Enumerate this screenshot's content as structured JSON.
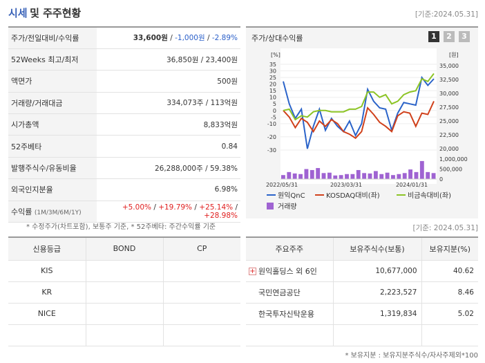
{
  "header": {
    "title_blue": "시세",
    "title_rest": "및 주주현황",
    "date": "[기준:2024.05.31]"
  },
  "price_rows": {
    "r1": {
      "label": "주가/전일대비/수익률",
      "price": "33,600원",
      "sep1": " / ",
      "change": "-1,000원",
      "sep2": " / ",
      "rate": "-2.89%"
    },
    "r2": {
      "label": "52Weeks 최고/최저",
      "value": "36,850원 / 23,400원"
    },
    "r3": {
      "label": "액면가",
      "value": "500원"
    },
    "r4": {
      "label": "거래량/거래대금",
      "value": "334,073주 / 113억원"
    },
    "r5": {
      "label": "시가총액",
      "value": "8,833억원"
    },
    "r6": {
      "label": "52주베타",
      "value": "0.84"
    },
    "r7": {
      "label": "발행주식수/유동비율",
      "value": "26,288,000주 / 59.38%"
    },
    "r8": {
      "label": "외국인지분율",
      "value": "6.98%"
    },
    "r9": {
      "label": "수익률",
      "label_small": "(1M/3M/6M/1Y)",
      "v1": "+5.00%",
      "v2": "+19.79%",
      "v3": "+25.14%",
      "v4": "+28.98%",
      "sep": " / "
    }
  },
  "footnote1": "* 수정주가(차트포함), 보통주 기준, * 52주베타: 주간수익률 기준",
  "chart_panel": {
    "title": "주가/상대수익률",
    "btn1": "1",
    "btn2": "2",
    "btn3": "3"
  },
  "chart_data": {
    "type": "line",
    "left_unit": "[%]",
    "right_unit": "[원]",
    "y_left_ticks": [
      35,
      30,
      25,
      20,
      15,
      10,
      5,
      0,
      -5,
      -10,
      -20,
      -30
    ],
    "y_right_ticks": [
      "35,000",
      "32,500",
      "30,000",
      "27,500",
      "25,000",
      "22,500",
      "20,000"
    ],
    "volume_ticks": [
      "1,000,000",
      "500,000",
      "0"
    ],
    "x_ticks": [
      "2022/05/31",
      "2023/03/31",
      "2024/01/31"
    ],
    "series": [
      {
        "name": "원익QnC",
        "color": "#2a63c9",
        "values": [
          22,
          5,
          -6,
          1,
          -29,
          -12,
          1,
          -15,
          -6,
          -12,
          -16,
          -8,
          -19,
          -10,
          16,
          7,
          2,
          1,
          -15,
          -2,
          6,
          5,
          4,
          25,
          19,
          24
        ]
      },
      {
        "name": "KOSDAQ대비(좌)",
        "color": "#d0401a",
        "values": [
          0,
          -5,
          -13,
          -6,
          -9,
          -16,
          -8,
          -12,
          -7,
          -10,
          -16,
          -18,
          -21,
          -16,
          2,
          -3,
          -9,
          -12,
          -16,
          -4,
          -1,
          -2,
          -12,
          -2,
          -3,
          7
        ]
      },
      {
        "name": "비금속대비(좌)",
        "color": "#8cc425",
        "values": [
          0,
          1,
          -7,
          -4,
          -5,
          -1,
          0,
          0,
          -1,
          -1,
          -1,
          1,
          1,
          3,
          14,
          14,
          10,
          12,
          5,
          7,
          12,
          14,
          15,
          24,
          22,
          28
        ]
      }
    ],
    "volume": {
      "name": "거래량",
      "color": "#9f63d2",
      "values": [
        0.2,
        0.35,
        0.28,
        0.25,
        0.5,
        0.45,
        0.55,
        0.3,
        0.32,
        0.18,
        0.2,
        0.25,
        0.25,
        0.45,
        0.3,
        0.28,
        0.4,
        0.25,
        0.32,
        0.2,
        0.25,
        0.3,
        0.48,
        0.35,
        0.9,
        0.35,
        0.3
      ]
    }
  },
  "date2": "[기준: 2024.05.31]",
  "credit": {
    "headers": [
      "신용등급",
      "BOND",
      "CP"
    ],
    "rows": [
      [
        "KIS",
        "",
        ""
      ],
      [
        "KR",
        "",
        ""
      ],
      [
        "NICE",
        "",
        ""
      ],
      [
        "",
        "",
        ""
      ]
    ]
  },
  "holders": {
    "headers": [
      "주요주주",
      "보유주식수(보통)",
      "보유지분(%)"
    ],
    "rows": [
      {
        "name": "원익홀딩스 외 6인",
        "shares": "10,677,000",
        "pct": "40.62"
      },
      {
        "name": "국민연금공단",
        "shares": "2,223,527",
        "pct": "8.46"
      },
      {
        "name": "한국투자신탁운용",
        "shares": "1,319,834",
        "pct": "5.02"
      },
      {
        "name": "",
        "shares": "",
        "pct": ""
      }
    ]
  },
  "footnote2": "* 보유지분 : 보유지분주식수/자사주제외*100"
}
